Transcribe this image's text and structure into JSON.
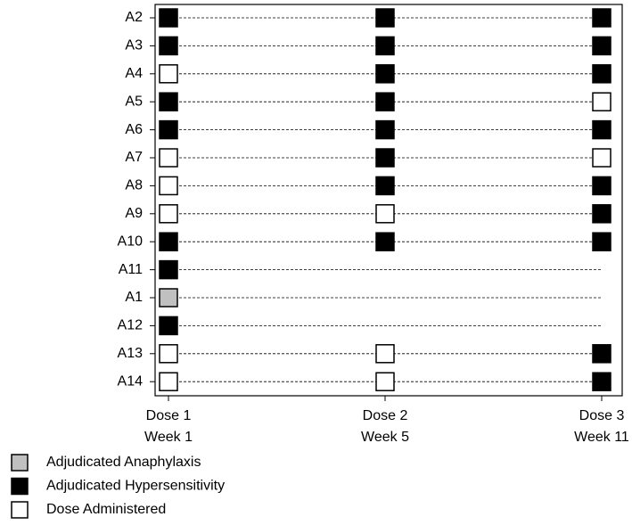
{
  "chart_data": {
    "type": "swimmer",
    "categories": [
      "A2",
      "A3",
      "A4",
      "A5",
      "A6",
      "A7",
      "A8",
      "A9",
      "A10",
      "A11",
      "A1",
      "A12",
      "A13",
      "A14"
    ],
    "doses": [
      [
        "Dose 1",
        "Week 1"
      ],
      [
        "Dose 2",
        "Week 5"
      ],
      [
        "Dose 3",
        "Week 11"
      ]
    ],
    "legend": [
      {
        "name": "Adjudicated Anaphylaxis",
        "color": "#c0c0c0"
      },
      {
        "name": "Adjudicated Hypersensitivity",
        "color": "#000000"
      },
      {
        "name": "Dose Administered",
        "color": "#ffffff"
      }
    ],
    "values": [
      [
        1,
        1,
        1
      ],
      [
        1,
        1,
        1
      ],
      [
        2,
        1,
        1
      ],
      [
        1,
        1,
        2
      ],
      [
        1,
        1,
        1
      ],
      [
        2,
        1,
        2
      ],
      [
        2,
        1,
        1
      ],
      [
        2,
        2,
        1
      ],
      [
        1,
        1,
        1
      ],
      [
        1,
        null,
        null
      ],
      [
        0,
        null,
        null
      ],
      [
        1,
        null,
        null
      ],
      [
        2,
        2,
        1
      ],
      [
        2,
        2,
        1
      ]
    ],
    "legend_position": "bottom-left"
  }
}
